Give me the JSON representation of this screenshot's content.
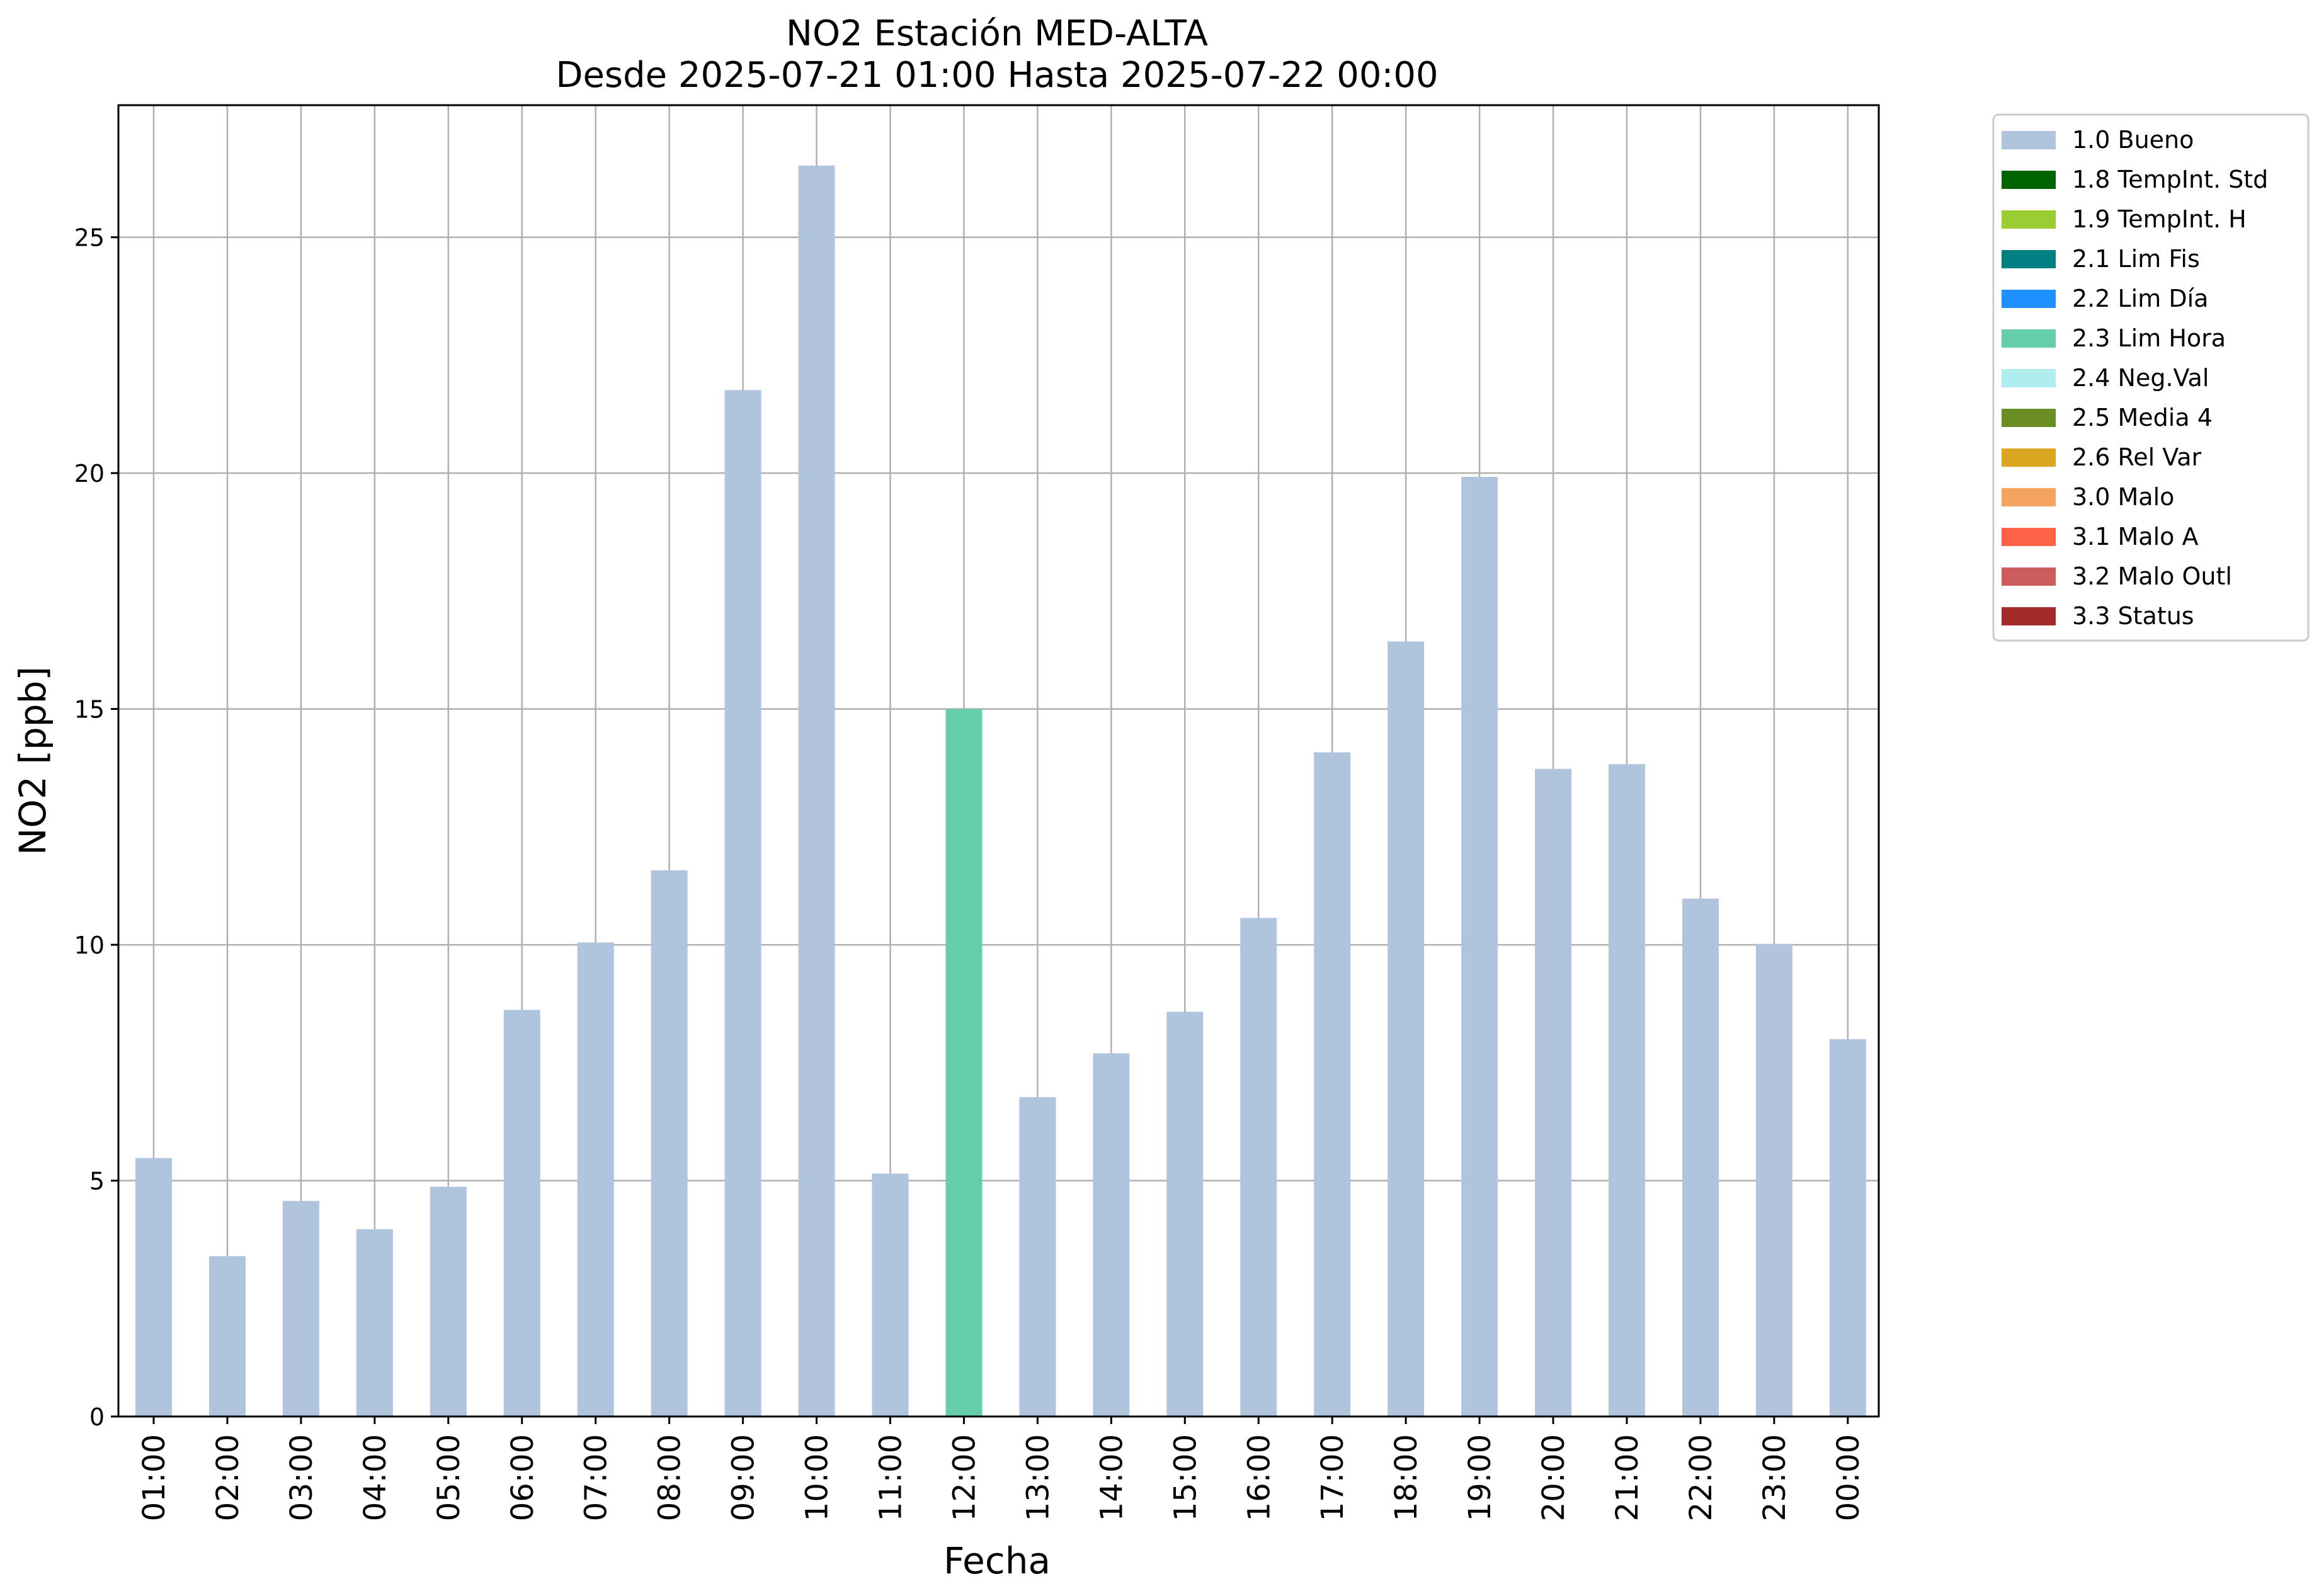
{
  "chart_data": {
    "type": "bar",
    "title": "NO2 Estación MED-ALTA",
    "subtitle": "Desde 2025-07-21 01:00 Hasta 2025-07-22 00:00",
    "xlabel": "Fecha",
    "ylabel": "NO2 [ppb]",
    "ylim": [
      0,
      27.8
    ],
    "yticks": [
      "0",
      "5",
      "10",
      "15",
      "20",
      "25"
    ],
    "grid": true,
    "legend_position": "outside-top-right",
    "categories": [
      "01:00",
      "02:00",
      "03:00",
      "04:00",
      "05:00",
      "06:00",
      "07:00",
      "08:00",
      "09:00",
      "10:00",
      "11:00",
      "12:00",
      "13:00",
      "14:00",
      "15:00",
      "16:00",
      "17:00",
      "18:00",
      "19:00",
      "20:00",
      "21:00",
      "22:00",
      "23:00",
      "00:00"
    ],
    "values": [
      5.48,
      3.4,
      4.57,
      3.97,
      4.87,
      8.62,
      10.05,
      11.58,
      21.76,
      26.52,
      5.15,
      15.0,
      6.77,
      7.7,
      8.58,
      10.57,
      14.08,
      16.43,
      19.92,
      13.73,
      13.83,
      10.98,
      10.02,
      8.0
    ],
    "flags": [
      "1.0 Bueno",
      "1.0 Bueno",
      "1.0 Bueno",
      "1.0 Bueno",
      "1.0 Bueno",
      "1.0 Bueno",
      "1.0 Bueno",
      "1.0 Bueno",
      "1.0 Bueno",
      "1.0 Bueno",
      "1.0 Bueno",
      "2.3 Lim Hora",
      "1.0 Bueno",
      "1.0 Bueno",
      "1.0 Bueno",
      "1.0 Bueno",
      "1.0 Bueno",
      "1.0 Bueno",
      "1.0 Bueno",
      "1.0 Bueno",
      "1.0 Bueno",
      "1.0 Bueno",
      "1.0 Bueno",
      "1.0 Bueno"
    ],
    "legend": [
      {
        "label": "1.0 Bueno",
        "color": "#b0c4de"
      },
      {
        "label": "1.8 TempInt. Std",
        "color": "#006400"
      },
      {
        "label": "1.9 TempInt. H",
        "color": "#9acd32"
      },
      {
        "label": "2.1 Lim Fis",
        "color": "#008080"
      },
      {
        "label": "2.2 Lim Día",
        "color": "#1e90ff"
      },
      {
        "label": "2.3 Lim Hora",
        "color": "#66cdaa"
      },
      {
        "label": "2.4 Neg.Val",
        "color": "#afeeee"
      },
      {
        "label": "2.5 Media 4",
        "color": "#6b8e23"
      },
      {
        "label": "2.6 Rel Var",
        "color": "#daa520"
      },
      {
        "label": "3.0 Malo",
        "color": "#f4a460"
      },
      {
        "label": "3.1 Malo A",
        "color": "#ff6347"
      },
      {
        "label": "3.2 Malo Outl",
        "color": "#cd5c5c"
      },
      {
        "label": "3.3 Status",
        "color": "#a52a2a"
      }
    ]
  }
}
